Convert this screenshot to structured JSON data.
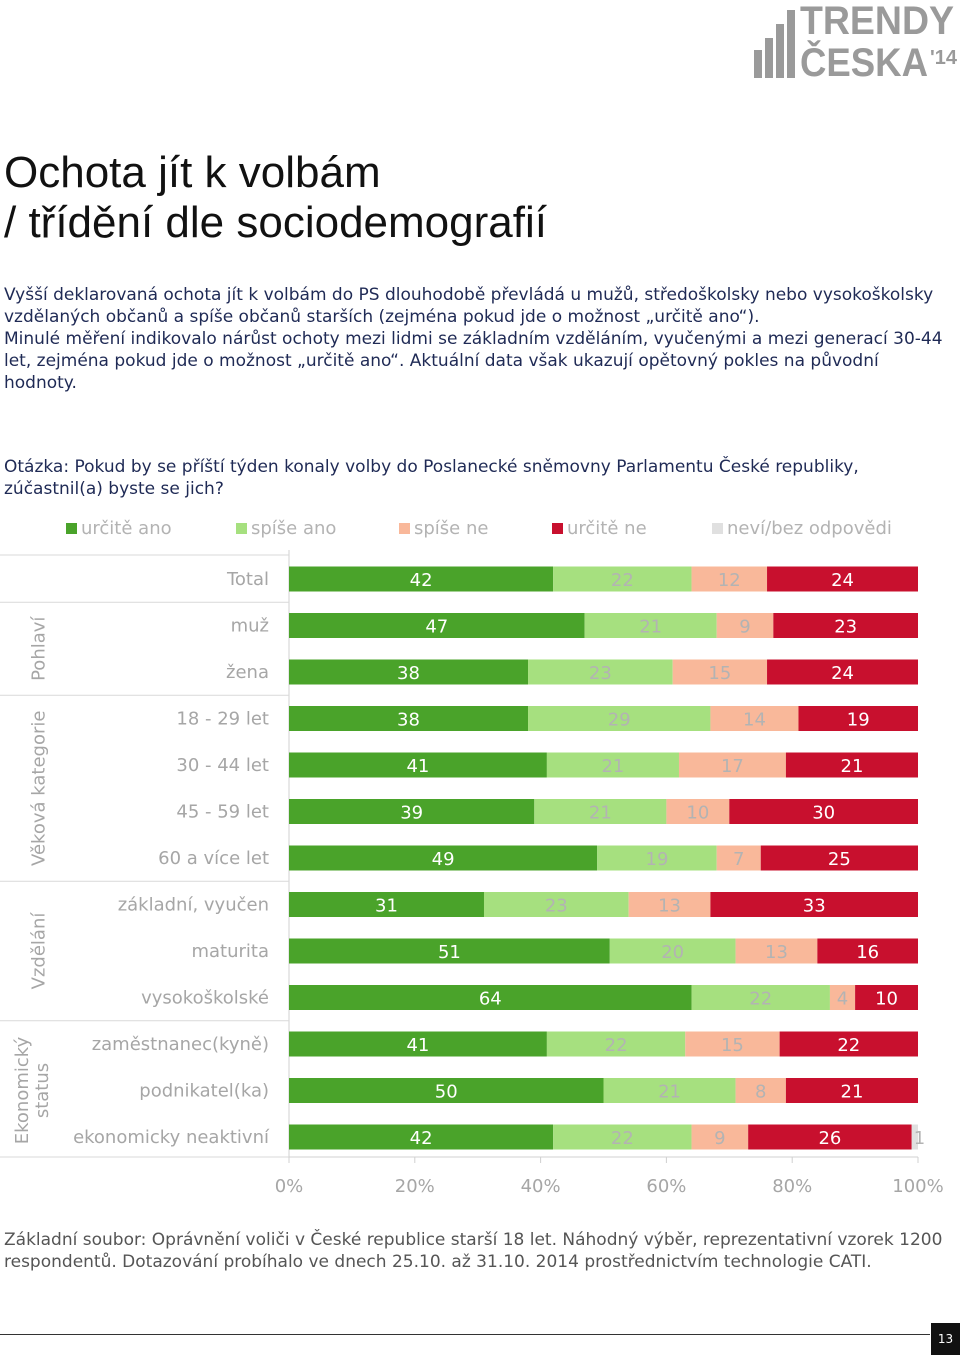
{
  "logo": {
    "line1": "TRENDY",
    "line2": "ČESKA",
    "year": "'14"
  },
  "title": {
    "line1": "Ochota jít k volbám",
    "line2": "/ třídění dle sociodemografií"
  },
  "intro": {
    "p1": "Vyšší deklarovaná ochota jít k volbám do PS dlouhodobě převládá  u mužů, středoškolsky nebo vysokoškolsky vzdělaných občanů a spíše občanů starších (zejména pokud jde o možnost „určitě ano“).",
    "p2": "Minulé měření indikovalo nárůst ochoty mezi lidmi se základním vzděláním, vyučenými a mezi generací 30-44 let, zejména pokud jde o možnost „určitě ano“. Aktuální data však ukazují opětovný pokles na původní hodnoty."
  },
  "question": "Otázka: Pokud by se příští týden konaly volby do Poslanecké sněmovny Parlamentu České republiky, zúčastnil(a) byste se jich?",
  "base_note": "Základní soubor: Oprávnění voliči v České republice starší 18 let. Náhodný výběr, reprezentativní vzorek 1200 respondentů. Dotazování probíhalo ve dnech 25.10. až 31.10. 2014 prostřednictvím technologie CATI.",
  "page_number": "13",
  "colors": {
    "urcite_ano": "#4aa32a",
    "spise_ano": "#a6e07f",
    "spise_ne": "#f9b89a",
    "urcite_ne": "#c8102e",
    "nevi": "#e0e0e0",
    "label": "#b3b3b3",
    "category": "#a6a6a6"
  },
  "chart_data": {
    "type": "bar",
    "orientation": "horizontal",
    "stacked": true,
    "xlim": [
      0,
      100
    ],
    "x_ticks": [
      "0%",
      "20%",
      "40%",
      "60%",
      "80%",
      "100%"
    ],
    "series": [
      {
        "name": "určitě ano",
        "color": "#4aa32a"
      },
      {
        "name": "spíše ano",
        "color": "#a6e07f"
      },
      {
        "name": "spíše ne",
        "color": "#f9b89a"
      },
      {
        "name": "určitě ne",
        "color": "#c8102e"
      },
      {
        "name": "neví/bez odpovědi",
        "color": "#e0e0e0"
      }
    ],
    "groups": [
      {
        "name": "",
        "rows": [
          {
            "label": "Total",
            "values": [
              42,
              22,
              12,
              24,
              0
            ]
          }
        ]
      },
      {
        "name": "Pohlaví",
        "rows": [
          {
            "label": "muž",
            "values": [
              47,
              21,
              9,
              23,
              0
            ]
          },
          {
            "label": "žena",
            "values": [
              38,
              23,
              15,
              24,
              0
            ]
          }
        ]
      },
      {
        "name": "Věková kategorie",
        "rows": [
          {
            "label": "18 - 29 let",
            "values": [
              38,
              29,
              14,
              19,
              0
            ]
          },
          {
            "label": "30 - 44 let",
            "values": [
              41,
              21,
              17,
              21,
              0
            ]
          },
          {
            "label": "45 - 59 let",
            "values": [
              39,
              21,
              10,
              30,
              0
            ]
          },
          {
            "label": "60 a více let",
            "values": [
              49,
              19,
              7,
              25,
              0
            ]
          }
        ]
      },
      {
        "name": "Vzdělání",
        "rows": [
          {
            "label": "základní, vyučen",
            "values": [
              31,
              23,
              13,
              33,
              0
            ]
          },
          {
            "label": "maturita",
            "values": [
              51,
              20,
              13,
              16,
              0
            ]
          },
          {
            "label": "vysokoškolské",
            "values": [
              64,
              22,
              4,
              10,
              0
            ]
          }
        ]
      },
      {
        "name": "Ekonomický status",
        "name_lines": [
          "Ekonomický",
          "status"
        ],
        "rows": [
          {
            "label": "zaměstnanec(kyně)",
            "values": [
              41,
              22,
              15,
              22,
              0
            ]
          },
          {
            "label": "podnikatel(ka)",
            "values": [
              50,
              21,
              8,
              21,
              0
            ]
          },
          {
            "label": "ekonomicky neaktivní",
            "values": [
              42,
              22,
              9,
              26,
              1
            ]
          }
        ]
      }
    ]
  }
}
